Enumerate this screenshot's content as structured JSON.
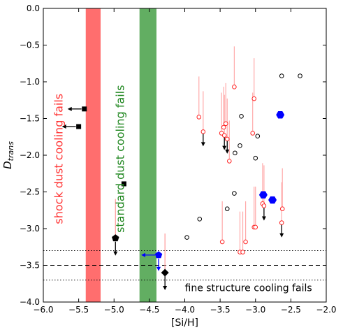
{
  "chart_data": {
    "type": "scatter",
    "xlabel": "[Si/H]",
    "ylabel": "D",
    "ylabel_sub": "trans",
    "xlim": [
      -6.0,
      -2.0
    ],
    "ylim": [
      -4.0,
      0.0
    ],
    "xticks": [
      "−6.0",
      "−5.5",
      "−5.0",
      "−4.5",
      "−4.0",
      "−3.5",
      "−3.0",
      "−2.5",
      "−2.0"
    ],
    "yticks": [
      "0.0",
      "−0.5",
      "−1.0",
      "−1.5",
      "−2.0",
      "−2.5",
      "−3.0",
      "−3.5",
      "−4.0"
    ],
    "bands": [
      {
        "x": [
          -5.4,
          -5.19
        ],
        "color": "#ff6666",
        "label": "shock dust cooling fails"
      },
      {
        "x": [
          -4.64,
          -4.4
        ],
        "color": "#5aaa5a",
        "label": "standard dust cooling fails"
      }
    ],
    "hlines": [
      {
        "y": -3.5,
        "style": "dashed"
      },
      {
        "y": -3.3,
        "style": "dotted"
      },
      {
        "y": -3.7,
        "style": "dotted"
      }
    ],
    "hline_label": "fine structure cooling fails",
    "open_black": [
      [
        -2.63,
        -0.92
      ],
      [
        -2.37,
        -0.92
      ],
      [
        -3.2,
        -1.47
      ],
      [
        -2.97,
        -1.74
      ],
      [
        -3.22,
        -1.87
      ],
      [
        -3.29,
        -1.97
      ],
      [
        -3.0,
        -2.04
      ],
      [
        -3.3,
        -2.52
      ],
      [
        -3.4,
        -2.73
      ],
      [
        -3.79,
        -2.87
      ],
      [
        -3.97,
        -3.12
      ]
    ],
    "open_red_uplim": [
      [
        -3.3,
        -1.07,
        false
      ],
      [
        -3.02,
        -1.23,
        false
      ],
      [
        -3.8,
        -1.48,
        false
      ],
      [
        -3.42,
        -1.57,
        false
      ],
      [
        -3.45,
        -1.62,
        false
      ],
      [
        -3.74,
        -1.68,
        true
      ],
      [
        -3.48,
        -1.7,
        false
      ],
      [
        -3.44,
        -1.73,
        true
      ],
      [
        -3.4,
        -1.78,
        true
      ],
      [
        -3.04,
        -1.7,
        false
      ],
      [
        -3.37,
        -2.08,
        false
      ],
      [
        -2.9,
        -2.66,
        false
      ],
      [
        -2.88,
        -2.69,
        true
      ],
      [
        -2.62,
        -2.73,
        false
      ],
      [
        -3.02,
        -2.98,
        false
      ],
      [
        -3.0,
        -2.98,
        false
      ],
      [
        -2.63,
        -2.92,
        true
      ],
      [
        -3.47,
        -3.18,
        false
      ],
      [
        -3.14,
        -3.18,
        false
      ],
      [
        -3.22,
        -3.32,
        false
      ],
      [
        -3.18,
        -3.32,
        false
      ]
    ],
    "blue_hex": [
      [
        -2.65,
        -1.45
      ],
      [
        -2.89,
        -2.54
      ],
      [
        -2.76,
        -2.61
      ]
    ],
    "black_square": [
      [
        -5.42,
        -1.37
      ],
      [
        -5.5,
        -1.61
      ],
      [
        -4.86,
        -2.39
      ]
    ],
    "black_pentagon": [
      -4.98,
      -3.13
    ],
    "blue_pentagon": [
      -4.37,
      -3.36
    ],
    "black_diamond": [
      -4.28,
      -3.6
    ]
  }
}
